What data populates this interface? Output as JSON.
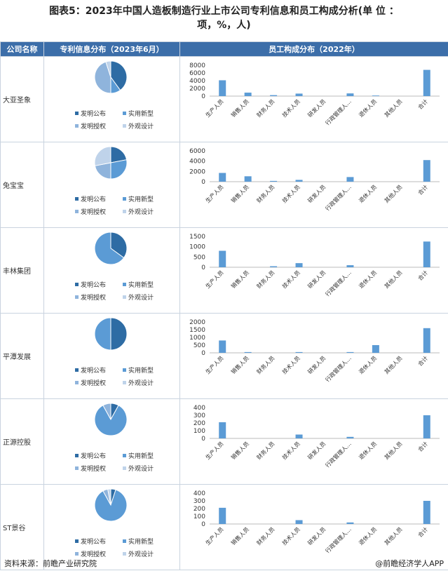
{
  "title_line1": "图表5：2023年中国人造板制造行业上市公司专利信息和员工构成分析(单 位 ：",
  "title_line2": "项，%，人)",
  "header": {
    "col1": "公司名称",
    "col2": "专利信息分布（2023年6月）",
    "col3": "员工构成分布（2022年）"
  },
  "legend": {
    "labels": [
      "发明公布",
      "实用新型",
      "发明授权",
      "外观设计"
    ],
    "colors": [
      "#2e6ca4",
      "#5b9bd5",
      "#8fb4dc",
      "#bfd3ea"
    ]
  },
  "footer": {
    "source": "资料来源：前瞻产业研究院",
    "brand": "@前瞻经济学人APP"
  },
  "chart_data": [
    {
      "company": "大亚圣象",
      "pie": {
        "type": "pie",
        "values": [
          40,
          10,
          45,
          5
        ]
      },
      "bar": {
        "type": "bar",
        "categories": [
          "生产人员",
          "销售人员",
          "财务人员",
          "技术人员",
          "研发人员",
          "行政管理人…",
          "退休人员",
          "其他人员",
          "合计"
        ],
        "values": [
          4100,
          900,
          250,
          650,
          0,
          700,
          150,
          0,
          6800
        ],
        "yticks": [
          0,
          2000,
          4000,
          6000,
          8000
        ],
        "ylim": [
          0,
          8000
        ]
      }
    },
    {
      "company": "兔宝宝",
      "pie": {
        "type": "pie",
        "values": [
          22,
          28,
          22,
          28
        ]
      },
      "bar": {
        "type": "bar",
        "categories": [
          "生产人员",
          "销售人员",
          "财务人员",
          "技术人员",
          "研发人员",
          "行政管理人…",
          "退休人员",
          "其他人员",
          "合计"
        ],
        "values": [
          1700,
          1050,
          150,
          350,
          0,
          900,
          0,
          0,
          4200
        ],
        "yticks": [
          0,
          2000,
          4000,
          6000
        ],
        "ylim": [
          0,
          6000
        ]
      }
    },
    {
      "company": "丰林集团",
      "pie": {
        "type": "pie",
        "values": [
          35,
          65,
          0,
          0
        ]
      },
      "bar": {
        "type": "bar",
        "categories": [
          "生产人员",
          "销售人员",
          "财务人员",
          "技术人员",
          "研发人员",
          "行政管理人…",
          "退休人员",
          "其他人员",
          "合计"
        ],
        "values": [
          800,
          0,
          50,
          200,
          0,
          100,
          0,
          0,
          1250
        ],
        "yticks": [
          0,
          500,
          1000,
          1500
        ],
        "ylim": [
          0,
          1500
        ]
      }
    },
    {
      "company": "平潭发展",
      "pie": {
        "type": "pie",
        "values": [
          50,
          50,
          0,
          0
        ]
      },
      "bar": {
        "type": "bar",
        "categories": [
          "生产人员",
          "销售人员",
          "财务人员",
          "技术人员",
          "研发人员",
          "行政管理人…",
          "退休人员",
          "其他人员",
          "合计"
        ],
        "values": [
          800,
          50,
          0,
          50,
          0,
          50,
          500,
          0,
          1600
        ],
        "yticks": [
          0,
          500,
          1000,
          1500,
          2000
        ],
        "ylim": [
          0,
          2000
        ]
      }
    },
    {
      "company": "正源控股",
      "pie": {
        "type": "pie",
        "values": [
          8,
          84,
          8,
          0
        ]
      },
      "bar": {
        "type": "bar",
        "categories": [
          "生产人员",
          "销售人员",
          "财务人员",
          "技术人员",
          "研发人员",
          "行政管理人…",
          "退休人员",
          "其他人员",
          "合计"
        ],
        "values": [
          210,
          0,
          0,
          50,
          0,
          20,
          0,
          0,
          300
        ],
        "yticks": [
          0,
          100,
          200,
          300,
          400
        ],
        "ylim": [
          0,
          400
        ]
      }
    },
    {
      "company": "ST景谷",
      "pie": {
        "type": "pie",
        "values": [
          5,
          87,
          5,
          3
        ]
      },
      "bar": {
        "type": "bar",
        "categories": [
          "生产人员",
          "销售人员",
          "财务人员",
          "技术人员",
          "研发人员",
          "行政管理人…",
          "退休人员",
          "其他人员",
          "合计"
        ],
        "values": [
          210,
          0,
          0,
          50,
          0,
          20,
          0,
          0,
          300
        ],
        "yticks": [
          0,
          100,
          200,
          300,
          400
        ],
        "ylim": [
          0,
          400
        ]
      }
    }
  ]
}
